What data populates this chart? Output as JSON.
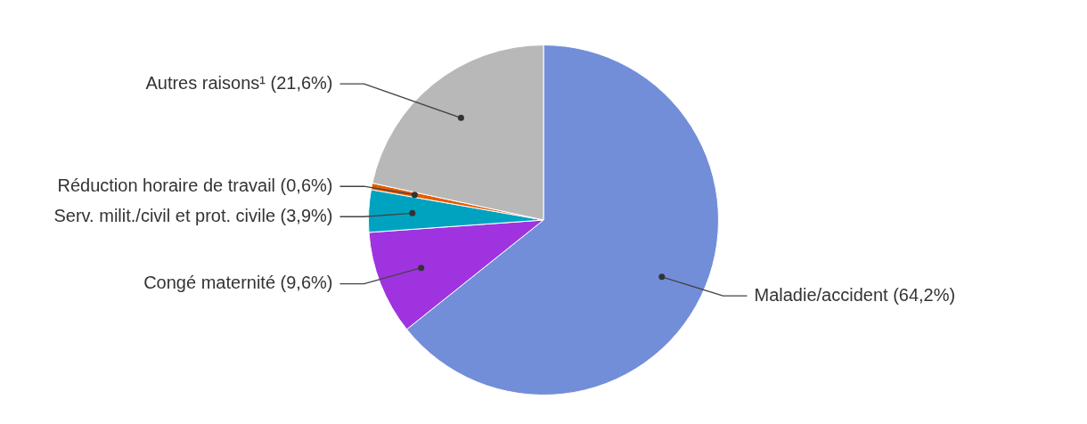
{
  "chart_data": {
    "type": "pie",
    "categories": [
      "Maladie/accident",
      "Congé maternité",
      "Serv. milit./civil et prot. civile",
      "Réduction horaire de travail",
      "Autres raisons¹"
    ],
    "values": [
      64.2,
      9.6,
      3.9,
      0.6,
      21.6
    ],
    "value_labels": [
      "(64,2%)",
      "(9,6%)",
      "(3,9%)",
      "(0,6%)",
      "(21,6%)"
    ],
    "colors": [
      "#728ed8",
      "#a033e0",
      "#00a3bf",
      "#e65c00",
      "#b8b8b8"
    ],
    "legend": false
  }
}
